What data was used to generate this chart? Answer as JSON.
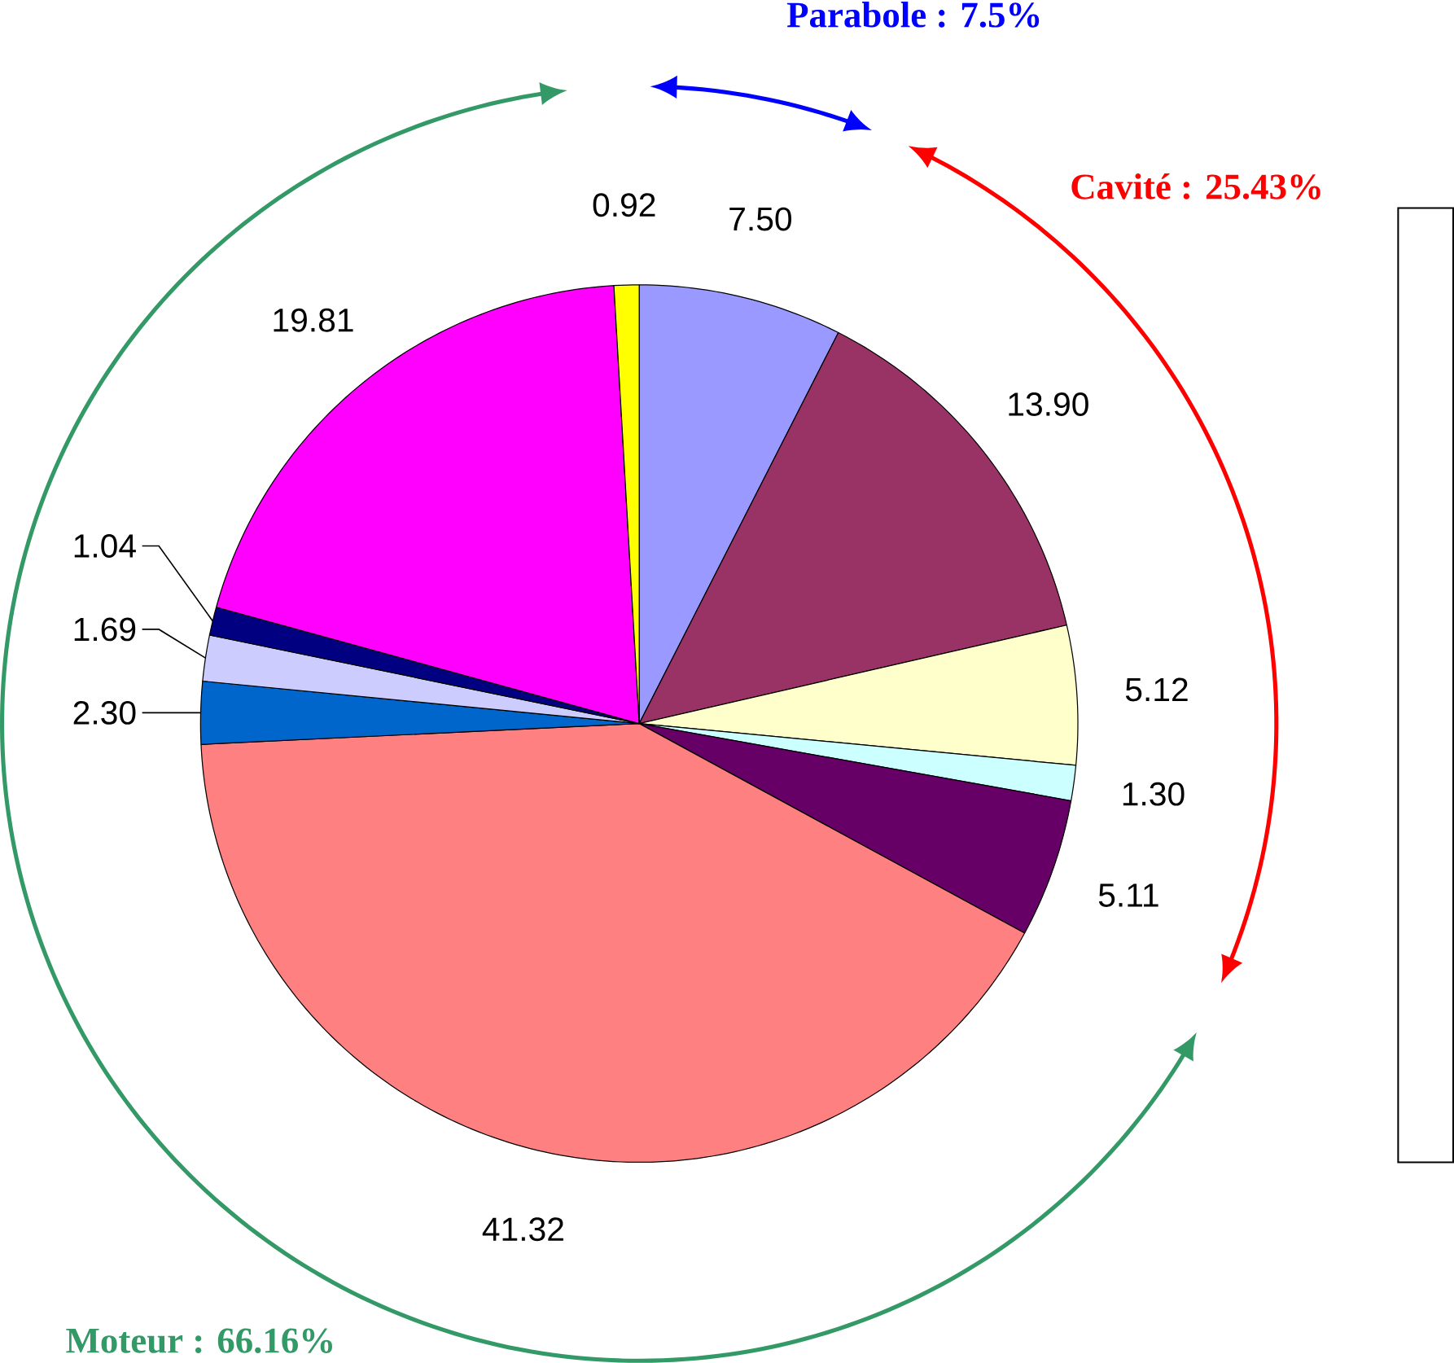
{
  "chart_data": {
    "type": "pie",
    "categories": [
      null,
      null,
      null,
      null,
      null,
      null,
      null,
      null,
      null,
      null,
      null
    ],
    "values": [
      7.5,
      13.9,
      5.12,
      1.3,
      5.11,
      41.32,
      2.3,
      1.69,
      1.04,
      19.81,
      0.92
    ],
    "value_labels": [
      "7.50",
      "13.90",
      "5.12",
      "1.30",
      "5.11",
      "41.32",
      "2.30",
      "1.69",
      "1.04",
      "19.81",
      "0.92"
    ],
    "colors": [
      "#9999ff",
      "#993366",
      "#ffffcc",
      "#ccffff",
      "#660066",
      "#ff8080",
      "#0066cc",
      "#ccccff",
      "#000080",
      "#ff00ff",
      "#ffff00"
    ],
    "annotations": [
      "Parabole : 7.5%",
      "Cavité : 25.43%",
      "Moteur : 66.16%"
    ]
  }
}
